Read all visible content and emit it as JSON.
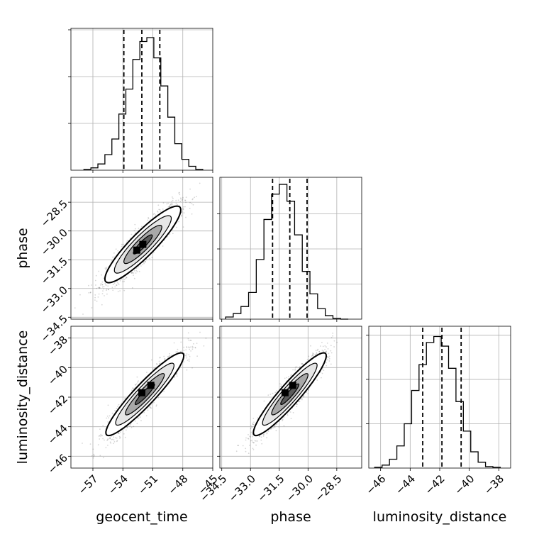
{
  "chart_data": {
    "type": "corner",
    "title": "",
    "parameters": [
      {
        "key": "geocent_time",
        "label": "geocent_time",
        "range": [
          -59.2,
          -45
        ],
        "ticks": [
          -57,
          -54,
          -51,
          -48,
          -45
        ],
        "tick_labels": [
          "−57",
          "−54",
          "−51",
          "−48",
          "−45"
        ],
        "quantiles": [
          -53.9,
          -52.1,
          -50.3
        ]
      },
      {
        "key": "phase",
        "label": "phase",
        "range": [
          -34.6,
          -27.2
        ],
        "ticks": [
          -34.5,
          -33.0,
          -31.5,
          -30.0,
          -28.5
        ],
        "tick_labels": [
          "−34.5",
          "−33.0",
          "−31.5",
          "−30.0",
          "−28.5"
        ],
        "quantiles": [
          -31.85,
          -30.95,
          -30.05
        ]
      },
      {
        "key": "luminosity_distance",
        "label": "luminosity_distance",
        "range": [
          -46.8,
          -37.2
        ],
        "ticks": [
          -46,
          -44,
          -42,
          -40,
          -38
        ],
        "tick_labels": [
          "−46",
          "−44",
          "−42",
          "−40",
          "−38"
        ],
        "quantiles": [
          -43.15,
          -41.85,
          -40.55
        ]
      }
    ],
    "histograms": [
      {
        "parameter": "geocent_time",
        "bin_edges": [
          -57.9,
          -57.2,
          -56.5,
          -55.8,
          -55.1,
          -54.4,
          -53.7,
          -53.0,
          -52.3,
          -51.6,
          -50.9,
          -50.2,
          -49.5,
          -48.8,
          -48.1,
          -47.4,
          -46.7,
          -46.0
        ],
        "counts": [
          1,
          3,
          8,
          20,
          40,
          72,
          104,
          142,
          165,
          170,
          144,
          108,
          68,
          34,
          14,
          5,
          1
        ],
        "ymax": 180,
        "yticks": [
          60,
          120,
          180
        ]
      },
      {
        "parameter": "phase",
        "bin_edges": [
          -34.3,
          -33.9,
          -33.5,
          -33.1,
          -32.7,
          -32.3,
          -31.9,
          -31.5,
          -31.1,
          -30.7,
          -30.3,
          -29.9,
          -29.5,
          -29.1,
          -28.7,
          -28.3,
          -27.9
        ],
        "counts": [
          3,
          8,
          18,
          38,
          85,
          142,
          178,
          192,
          168,
          120,
          68,
          36,
          15,
          5,
          1,
          0
        ],
        "ymax": 200,
        "yticks": [
          50,
          100,
          150
        ]
      },
      {
        "parameter": "luminosity_distance",
        "bin_edges": [
          -46.4,
          -45.9,
          -45.4,
          -44.9,
          -44.4,
          -43.9,
          -43.4,
          -42.9,
          -42.4,
          -41.9,
          -41.4,
          -40.9,
          -40.4,
          -39.9,
          -39.4,
          -38.9,
          -38.4,
          -37.9
        ],
        "counts": [
          1,
          4,
          12,
          30,
          60,
          105,
          140,
          170,
          178,
          165,
          135,
          90,
          50,
          22,
          8,
          2,
          1
        ],
        "ymax": 190,
        "yticks": [
          60,
          120,
          180
        ]
      }
    ],
    "scatter_panels": [
      {
        "x": "geocent_time",
        "y": "phase",
        "mean": [
          -52.0,
          -30.7
        ],
        "sd": [
          1.9,
          1.0
        ],
        "rho": 0.9,
        "contour_levels": [
          0.5,
          1.0,
          1.5,
          2.0
        ],
        "peak_points": [
          [
            -52.0,
            -30.7
          ],
          [
            -52.6,
            -31.0
          ]
        ]
      },
      {
        "x": "geocent_time",
        "y": "luminosity_distance",
        "mean": [
          -51.8,
          -41.8
        ],
        "sd": [
          1.95,
          1.4
        ],
        "rho": 0.93,
        "contour_levels": [
          0.5,
          1.0,
          1.5,
          2.0
        ],
        "peak_points": [
          [
            -52.1,
            -41.7
          ],
          [
            -51.2,
            -41.2
          ]
        ]
      },
      {
        "x": "phase",
        "y": "luminosity_distance",
        "mean": [
          -30.95,
          -41.8
        ],
        "sd": [
          0.95,
          1.4
        ],
        "rho": 0.93,
        "contour_levels": [
          0.5,
          1.0,
          1.5,
          2.0
        ],
        "peak_points": [
          [
            -31.2,
            -41.7
          ],
          [
            -30.8,
            -41.2
          ]
        ]
      }
    ],
    "grid": true,
    "legend": "none"
  }
}
